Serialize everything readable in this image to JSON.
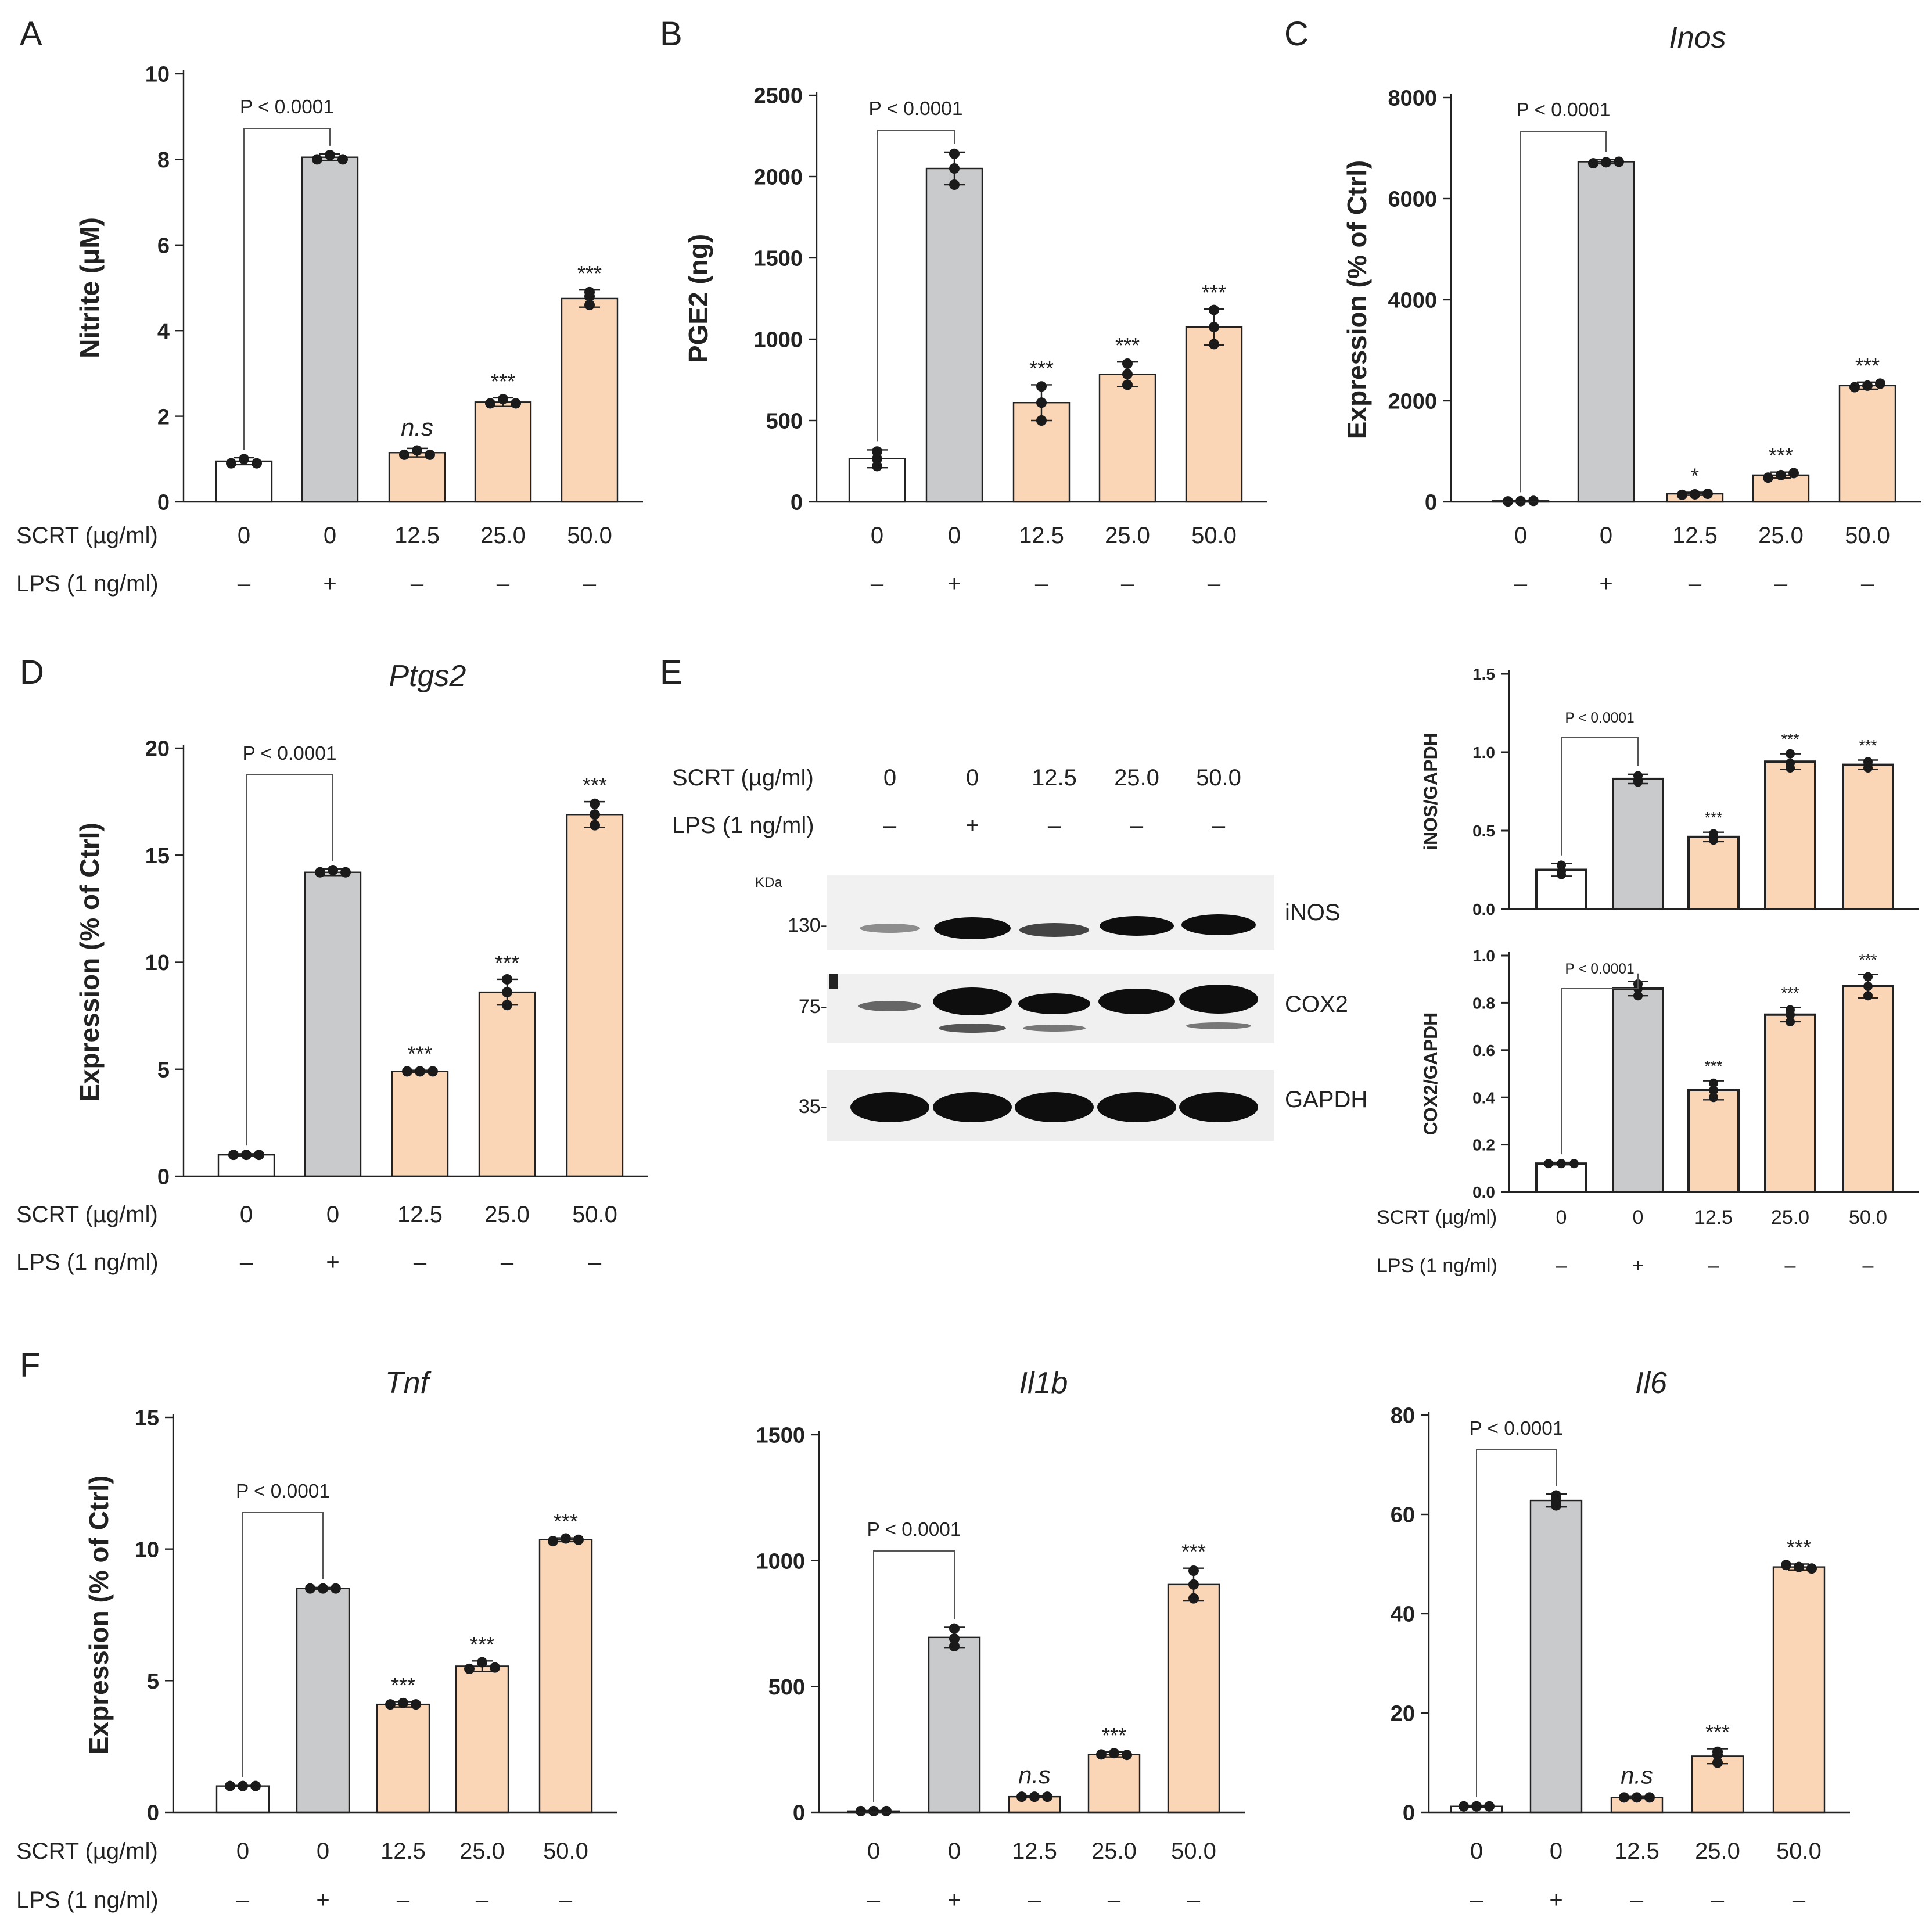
{
  "colors": {
    "ctrl": "#ffffff",
    "lps": "#c9cacc",
    "scrt": "#fad5b6",
    "axis": "#222222",
    "blot_bg": "#f1f1f1",
    "band": "#0e0e0e"
  },
  "shared": {
    "categories": [
      "0",
      "0",
      "12.5",
      "25.0",
      "50.0"
    ],
    "lps_signs": [
      "–",
      "+",
      "–",
      "–",
      "–"
    ],
    "scrt_row_label": "SCRT (µg/ml)",
    "lps_row_label": "LPS (1 ng/ml)"
  },
  "panel_letters": [
    "A",
    "B",
    "C",
    "D",
    "E",
    "F"
  ],
  "western_blot": {
    "scrt_row_label": "SCRT (µg/ml)",
    "lps_row_label": "LPS (1 ng/ml)",
    "categories": [
      "0",
      "0",
      "12.5",
      "25.0",
      "50.0"
    ],
    "lps_signs": [
      "–",
      "+",
      "–",
      "–",
      "–"
    ],
    "kda_label": "KDa",
    "markers": [
      "130-",
      "75-",
      "35-"
    ],
    "bands": [
      "iNOS",
      "COX2",
      "GAPDH"
    ]
  },
  "chart_data": [
    {
      "id": "A",
      "type": "bar",
      "title": "",
      "title_italic": false,
      "ylabel": "Nitrite (μM)",
      "ylim": [
        0,
        10
      ],
      "yticks": [
        "0",
        "2",
        "4",
        "6",
        "8",
        "10"
      ],
      "values": [
        0.95,
        8.05,
        1.15,
        2.33,
        4.75
      ],
      "errors": [
        0.08,
        0.08,
        0.1,
        0.1,
        0.2
      ],
      "points": [
        [
          0.9,
          1.0,
          0.9
        ],
        [
          8.0,
          8.1,
          8.0
        ],
        [
          1.1,
          1.2,
          1.1
        ],
        [
          2.3,
          2.4,
          2.3
        ],
        [
          4.6,
          4.9,
          4.8
        ]
      ],
      "annotations": [
        "",
        "",
        "n.s",
        "***",
        "***"
      ],
      "bracket": "P < 0.0001",
      "show_rows": true
    },
    {
      "id": "B",
      "type": "bar",
      "title": "",
      "title_italic": false,
      "ylabel": "PGE2 (ng)",
      "ylim": [
        0,
        2500
      ],
      "yticks": [
        "0",
        "500",
        "1000",
        "1500",
        "2000",
        "2500"
      ],
      "values": [
        265,
        2050,
        610,
        785,
        1075
      ],
      "errors": [
        55,
        100,
        110,
        75,
        110
      ],
      "points": [
        [
          310,
          265,
          220
        ],
        [
          2140,
          2050,
          1950
        ],
        [
          710,
          610,
          500
        ],
        [
          850,
          785,
          720
        ],
        [
          1180,
          1075,
          970
        ]
      ],
      "annotations": [
        "",
        "",
        "***",
        "***",
        "***"
      ],
      "bracket": "P < 0.0001",
      "show_rows": false
    },
    {
      "id": "C",
      "type": "bar",
      "title": "Inos",
      "title_italic": true,
      "ylabel": "Expression (% of Ctrl)",
      "ylim": [
        0,
        8000
      ],
      "yticks": [
        "0",
        "2000",
        "4000",
        "6000",
        "8000"
      ],
      "values": [
        20,
        6730,
        160,
        530,
        2300
      ],
      "errors": [
        10,
        40,
        30,
        60,
        70
      ],
      "points": [
        [
          10,
          15,
          20
        ],
        [
          6700,
          6720,
          6730
        ],
        [
          140,
          150,
          160
        ],
        [
          480,
          530,
          570
        ],
        [
          2270,
          2300,
          2340
        ]
      ],
      "annotations": [
        "",
        "",
        "*",
        "***",
        "***"
      ],
      "bracket": "P < 0.0001",
      "show_rows": false
    },
    {
      "id": "D",
      "type": "bar",
      "title": "Ptgs2",
      "title_italic": true,
      "ylabel": "Expression (% of Ctrl)",
      "ylim": [
        0,
        20
      ],
      "yticks": [
        "0",
        "5",
        "10",
        "15",
        "20"
      ],
      "values": [
        1.0,
        14.2,
        4.9,
        8.6,
        16.9
      ],
      "errors": [
        0.05,
        0.15,
        0.05,
        0.6,
        0.6
      ],
      "points": [
        [
          1.0,
          1.0,
          1.0
        ],
        [
          14.2,
          14.3,
          14.2
        ],
        [
          4.9,
          4.9,
          4.9
        ],
        [
          9.2,
          8.6,
          8.0
        ],
        [
          17.4,
          16.9,
          16.4
        ]
      ],
      "annotations": [
        "",
        "",
        "***",
        "***",
        "***"
      ],
      "bracket": "P < 0.0001",
      "show_rows": true
    },
    {
      "id": "E1",
      "type": "bar",
      "title": "",
      "title_italic": false,
      "ylabel": "iNOS/GAPDH",
      "ylim": [
        0,
        1.5
      ],
      "yticks": [
        "0.0",
        "0.5",
        "1.0",
        "1.5"
      ],
      "values": [
        0.25,
        0.83,
        0.46,
        0.94,
        0.92
      ],
      "errors": [
        0.04,
        0.03,
        0.03,
        0.05,
        0.03
      ],
      "points": [
        [
          0.28,
          0.24,
          0.22
        ],
        [
          0.85,
          0.82,
          0.81
        ],
        [
          0.48,
          0.45,
          0.44
        ],
        [
          0.99,
          0.93,
          0.9
        ],
        [
          0.94,
          0.92,
          0.9
        ]
      ],
      "annotations": [
        "",
        "",
        "***",
        "***",
        "***"
      ],
      "bracket": "P < 0.0001",
      "show_rows": false
    },
    {
      "id": "E2",
      "type": "bar",
      "title": "",
      "title_italic": false,
      "ylabel": "COX2/GAPDH",
      "ylim": [
        0,
        1.0
      ],
      "yticks": [
        "0.0",
        "0.2",
        "0.4",
        "0.6",
        "0.8",
        "1.0"
      ],
      "values": [
        0.12,
        0.86,
        0.43,
        0.75,
        0.87
      ],
      "errors": [
        0.005,
        0.03,
        0.04,
        0.03,
        0.05
      ],
      "points": [
        [
          0.12,
          0.12,
          0.12
        ],
        [
          0.88,
          0.86,
          0.83
        ],
        [
          0.46,
          0.43,
          0.4
        ],
        [
          0.77,
          0.75,
          0.72
        ],
        [
          0.91,
          0.87,
          0.83
        ]
      ],
      "annotations": [
        "",
        "",
        "***",
        "***",
        "***"
      ],
      "bracket": "P < 0.0001",
      "show_rows": true
    },
    {
      "id": "F1",
      "type": "bar",
      "title": "Tnf",
      "title_italic": true,
      "ylabel": "Expression (% of Ctrl)",
      "ylim": [
        0,
        15
      ],
      "yticks": [
        "0",
        "5",
        "10",
        "15"
      ],
      "values": [
        1.0,
        8.5,
        4.1,
        5.55,
        10.35
      ],
      "errors": [
        0.02,
        0.04,
        0.1,
        0.2,
        0.07
      ],
      "points": [
        [
          1.0,
          1.0,
          1.0
        ],
        [
          8.5,
          8.5,
          8.5
        ],
        [
          4.1,
          4.15,
          4.1
        ],
        [
          5.45,
          5.7,
          5.5
        ],
        [
          10.3,
          10.4,
          10.35
        ]
      ],
      "annotations": [
        "",
        "",
        "***",
        "***",
        "***"
      ],
      "bracket": "P < 0.0001",
      "show_rows": true
    },
    {
      "id": "F2",
      "type": "bar",
      "title": "Il1b",
      "title_italic": true,
      "ylabel": "",
      "ylim": [
        0,
        1500
      ],
      "yticks": [
        "0",
        "500",
        "1000",
        "1500"
      ],
      "values": [
        5,
        695,
        62,
        230,
        905
      ],
      "errors": [
        2,
        40,
        3,
        10,
        65
      ],
      "points": [
        [
          5,
          5,
          5
        ],
        [
          730,
          690,
          660
        ],
        [
          62,
          62,
          62
        ],
        [
          230,
          235,
          228
        ],
        [
          960,
          905,
          850
        ]
      ],
      "annotations": [
        "",
        "",
        "n.s",
        "***",
        "***"
      ],
      "bracket": "P < 0.0001",
      "show_rows": false
    },
    {
      "id": "F3",
      "type": "bar",
      "title": "Il6",
      "title_italic": true,
      "ylabel": "",
      "ylim": [
        0,
        80
      ],
      "yticks": [
        "0",
        "20",
        "40",
        "60",
        "80"
      ],
      "values": [
        1.2,
        62.8,
        3.0,
        11.3,
        49.4
      ],
      "errors": [
        0.2,
        1.3,
        0.2,
        1.5,
        0.6
      ],
      "points": [
        [
          1.2,
          1.2,
          1.2
        ],
        [
          63.8,
          62.8,
          61.8
        ],
        [
          3.0,
          3.0,
          3.0
        ],
        [
          12.2,
          11.6,
          10.0
        ],
        [
          49.8,
          49.4,
          49.1
        ]
      ],
      "annotations": [
        "",
        "",
        "n.s",
        "***",
        "***"
      ],
      "bracket": "P < 0.0001",
      "show_rows": false
    }
  ]
}
